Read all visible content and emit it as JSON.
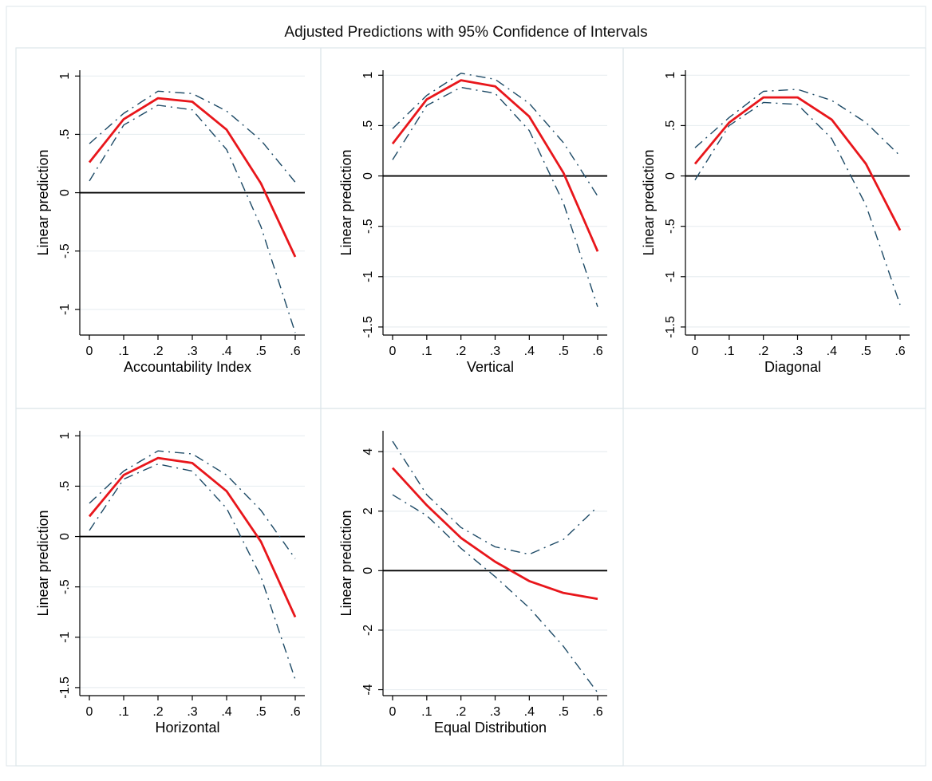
{
  "title": "Adjusted Predictions with 95% Confidence of Intervals",
  "colors": {
    "prediction": "#e8161b",
    "ci_lower": "#1d4a66",
    "ci_upper": "#1d4a66",
    "zero_line": "#000000",
    "grid": "#e8eef1",
    "panel_border": "#dde6ea"
  },
  "chart_data": [
    {
      "type": "line",
      "xlabel": "Accountability Index",
      "ylabel": "Linear prediction",
      "x": [
        0,
        0.1,
        0.2,
        0.3,
        0.4,
        0.5,
        0.6
      ],
      "xticks": [
        "0",
        ".1",
        ".2",
        ".3",
        ".4",
        ".5",
        ".6"
      ],
      "yticks": [
        -1,
        -0.5,
        0,
        0.5,
        1
      ],
      "yticklabels": [
        "-1",
        "-.5",
        "0",
        ".5",
        "1"
      ],
      "ylim": [
        -1.22,
        1.05
      ],
      "series": [
        {
          "role": "prediction",
          "values": [
            0.26,
            0.63,
            0.81,
            0.78,
            0.54,
            0.08,
            -0.55
          ]
        },
        {
          "role": "ci_upper",
          "values": [
            0.42,
            0.68,
            0.87,
            0.85,
            0.7,
            0.45,
            0.09
          ]
        },
        {
          "role": "ci_lower",
          "values": [
            0.1,
            0.58,
            0.75,
            0.71,
            0.37,
            -0.29,
            -1.2
          ]
        }
      ],
      "reference_line": 0
    },
    {
      "type": "line",
      "xlabel": "Vertical",
      "ylabel": "Linear prediction",
      "x": [
        0,
        0.1,
        0.2,
        0.3,
        0.4,
        0.5,
        0.6
      ],
      "xticks": [
        "0",
        ".1",
        ".2",
        ".3",
        ".4",
        ".5",
        ".6"
      ],
      "yticks": [
        -1.5,
        -1,
        -0.5,
        0,
        0.5,
        1
      ],
      "yticklabels": [
        "-1.5",
        "-1",
        "-.5",
        "0",
        ".5",
        "1"
      ],
      "ylim": [
        -1.58,
        1.05
      ],
      "series": [
        {
          "role": "prediction",
          "values": [
            0.32,
            0.76,
            0.95,
            0.89,
            0.59,
            0.03,
            -0.75
          ]
        },
        {
          "role": "ci_upper",
          "values": [
            0.47,
            0.8,
            1.02,
            0.96,
            0.72,
            0.33,
            -0.2
          ]
        },
        {
          "role": "ci_lower",
          "values": [
            0.16,
            0.7,
            0.88,
            0.82,
            0.45,
            -0.27,
            -1.3
          ]
        }
      ],
      "reference_line": 0
    },
    {
      "type": "line",
      "xlabel": "Diagonal",
      "ylabel": "Linear prediction",
      "x": [
        0,
        0.1,
        0.2,
        0.3,
        0.4,
        0.5,
        0.6
      ],
      "xticks": [
        "0",
        ".1",
        ".2",
        ".3",
        ".4",
        ".5",
        ".6"
      ],
      "yticks": [
        -1.5,
        -1,
        -0.5,
        0,
        0.5,
        1
      ],
      "yticklabels": [
        "-1.5",
        "-1",
        "-.5",
        "0",
        ".5",
        "1"
      ],
      "ylim": [
        -1.58,
        1.05
      ],
      "series": [
        {
          "role": "prediction",
          "values": [
            0.12,
            0.53,
            0.78,
            0.78,
            0.56,
            0.12,
            -0.54
          ]
        },
        {
          "role": "ci_upper",
          "values": [
            0.28,
            0.58,
            0.84,
            0.86,
            0.75,
            0.53,
            0.2
          ]
        },
        {
          "role": "ci_lower",
          "values": [
            -0.04,
            0.5,
            0.73,
            0.71,
            0.37,
            -0.29,
            -1.28
          ]
        }
      ],
      "reference_line": 0
    },
    {
      "type": "line",
      "xlabel": "Horizontal",
      "ylabel": "Linear prediction",
      "x": [
        0,
        0.1,
        0.2,
        0.3,
        0.4,
        0.5,
        0.6
      ],
      "xticks": [
        "0",
        ".1",
        ".2",
        ".3",
        ".4",
        ".5",
        ".6"
      ],
      "yticks": [
        -1.5,
        -1,
        -0.5,
        0,
        0.5,
        1
      ],
      "yticklabels": [
        "-1.5",
        "-1",
        "-.5",
        "0",
        ".5",
        "1"
      ],
      "ylim": [
        -1.58,
        1.05
      ],
      "series": [
        {
          "role": "prediction",
          "values": [
            0.2,
            0.61,
            0.78,
            0.73,
            0.45,
            -0.05,
            -0.8
          ]
        },
        {
          "role": "ci_upper",
          "values": [
            0.33,
            0.65,
            0.85,
            0.82,
            0.61,
            0.26,
            -0.22
          ]
        },
        {
          "role": "ci_lower",
          "values": [
            0.06,
            0.57,
            0.72,
            0.65,
            0.28,
            -0.4,
            -1.42
          ]
        }
      ],
      "reference_line": 0
    },
    {
      "type": "line",
      "xlabel": "Equal Distribution",
      "ylabel": "Linear prediction",
      "x": [
        0,
        0.1,
        0.2,
        0.3,
        0.4,
        0.5,
        0.6
      ],
      "xticks": [
        "0",
        ".1",
        ".2",
        ".3",
        ".4",
        ".5",
        ".6"
      ],
      "yticks": [
        -4,
        -2,
        0,
        2,
        4
      ],
      "yticklabels": [
        "-4",
        "-2",
        "0",
        "2",
        "4"
      ],
      "ylim": [
        -4.2,
        4.7
      ],
      "series": [
        {
          "role": "prediction",
          "values": [
            3.45,
            2.2,
            1.1,
            0.3,
            -0.35,
            -0.75,
            -0.95
          ]
        },
        {
          "role": "ci_upper",
          "values": [
            4.35,
            2.55,
            1.45,
            0.8,
            0.55,
            1.05,
            2.15
          ]
        },
        {
          "role": "ci_lower",
          "values": [
            2.55,
            1.85,
            0.75,
            -0.2,
            -1.25,
            -2.55,
            -4.1
          ]
        }
      ],
      "reference_line": 0
    }
  ]
}
